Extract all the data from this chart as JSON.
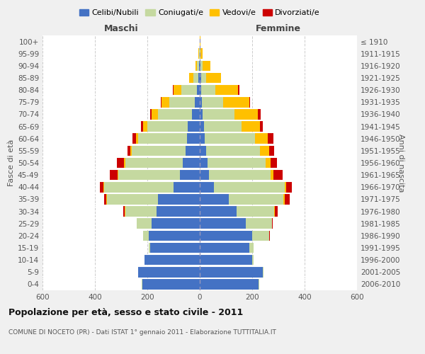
{
  "age_groups": [
    "0-4",
    "5-9",
    "10-14",
    "15-19",
    "20-24",
    "25-29",
    "30-34",
    "35-39",
    "40-44",
    "45-49",
    "50-54",
    "55-59",
    "60-64",
    "65-69",
    "70-74",
    "75-79",
    "80-84",
    "85-89",
    "90-94",
    "95-99",
    "100+"
  ],
  "birth_years": [
    "2006-2010",
    "2001-2005",
    "1996-2000",
    "1991-1995",
    "1986-1990",
    "1981-1985",
    "1976-1980",
    "1971-1975",
    "1966-1970",
    "1961-1965",
    "1956-1960",
    "1951-1955",
    "1946-1950",
    "1941-1945",
    "1936-1940",
    "1931-1935",
    "1926-1930",
    "1921-1925",
    "1916-1920",
    "1911-1915",
    "≤ 1910"
  ],
  "male": {
    "celibi": [
      220,
      235,
      210,
      190,
      195,
      185,
      165,
      160,
      100,
      75,
      65,
      55,
      50,
      45,
      30,
      20,
      10,
      5,
      2,
      1,
      0
    ],
    "coniugati": [
      1,
      1,
      2,
      5,
      20,
      55,
      120,
      195,
      265,
      235,
      220,
      205,
      185,
      155,
      130,
      95,
      60,
      20,
      8,
      3,
      1
    ],
    "vedovi": [
      0,
      0,
      0,
      0,
      0,
      0,
      1,
      1,
      2,
      3,
      5,
      5,
      8,
      15,
      25,
      30,
      30,
      15,
      5,
      2,
      0
    ],
    "divorziati": [
      0,
      0,
      0,
      0,
      2,
      0,
      5,
      10,
      15,
      30,
      25,
      10,
      15,
      8,
      5,
      5,
      2,
      0,
      0,
      0,
      0
    ]
  },
  "female": {
    "nubili": [
      225,
      240,
      200,
      190,
      200,
      175,
      140,
      110,
      55,
      35,
      30,
      25,
      20,
      15,
      12,
      8,
      5,
      5,
      2,
      1,
      0
    ],
    "coniugate": [
      1,
      2,
      5,
      15,
      65,
      100,
      145,
      210,
      270,
      235,
      220,
      205,
      190,
      145,
      120,
      80,
      55,
      20,
      8,
      3,
      1
    ],
    "vedove": [
      0,
      0,
      0,
      0,
      1,
      1,
      2,
      3,
      5,
      10,
      20,
      35,
      50,
      70,
      90,
      100,
      85,
      55,
      30,
      8,
      1
    ],
    "divorziate": [
      0,
      0,
      0,
      0,
      2,
      2,
      10,
      20,
      20,
      35,
      25,
      20,
      20,
      10,
      10,
      5,
      5,
      2,
      0,
      0,
      0
    ]
  },
  "colors": {
    "celibi": "#4472c4",
    "coniugati": "#c5d9a0",
    "vedovi": "#ffc000",
    "divorziati": "#cc0000"
  },
  "xlim": 600,
  "title": "Popolazione per età, sesso e stato civile - 2011",
  "subtitle": "COMUNE DI NOCETO (PR) - Dati ISTAT 1° gennaio 2011 - Elaborazione TUTTITALIA.IT",
  "xlabel_left": "Maschi",
  "xlabel_right": "Femmine",
  "ylabel_left": "Fasce di età",
  "ylabel_right": "Anni di nascita",
  "bg_color": "#f0f0f0",
  "plot_bg": "#ffffff",
  "grid_color": "#cccccc"
}
